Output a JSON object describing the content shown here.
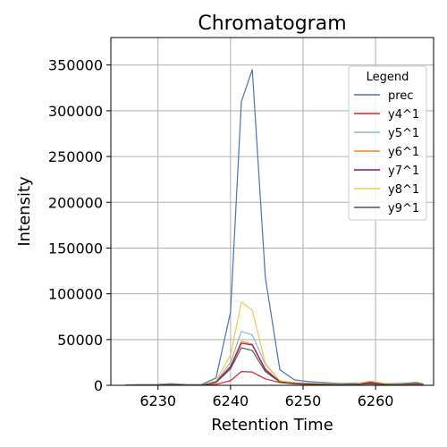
{
  "chart_data": {
    "type": "line",
    "title": "Chromatogram",
    "xlabel": "Retention Time",
    "ylabel": "Intensity",
    "xlim": [
      6223.5,
      6268
    ],
    "ylim": [
      0,
      380000
    ],
    "grid": true,
    "legend": {
      "title": "Legend",
      "placement": "top-right"
    },
    "xticks": [
      6230,
      6240,
      6250,
      6260
    ],
    "yticks": [
      0,
      50000,
      100000,
      150000,
      200000,
      250000,
      300000,
      350000
    ],
    "x": [
      6225.5,
      6227.6,
      6229.7,
      6231.8,
      6233.9,
      6236.0,
      6238.0,
      6240.0,
      6241.5,
      6243.0,
      6244.8,
      6246.8,
      6248.8,
      6250.9,
      6253.0,
      6255.1,
      6257.2,
      6259.3,
      6261.4,
      6263.5,
      6265.6,
      6266.6
    ],
    "series": [
      {
        "name": "prec",
        "color": "#4c72b0",
        "values": [
          500,
          800,
          700,
          1800,
          800,
          900,
          8000,
          80000,
          310000,
          345000,
          118000,
          17000,
          6000,
          4000,
          3000,
          2000,
          2500,
          2500,
          2000,
          2000,
          3000,
          1500
        ]
      },
      {
        "name": "y4^1",
        "color": "#d62728",
        "values": [
          100,
          100,
          100,
          200,
          100,
          100,
          1000,
          5000,
          15000,
          14500,
          7000,
          3000,
          1500,
          1000,
          800,
          600,
          800,
          2500,
          1500,
          1000,
          1500,
          500
        ]
      },
      {
        "name": "y5^1",
        "color": "#8ab6d9",
        "values": [
          200,
          300,
          200,
          600,
          300,
          300,
          4000,
          25000,
          59000,
          55000,
          23000,
          5000,
          3000,
          2000,
          1500,
          1200,
          1500,
          1500,
          1200,
          1000,
          1500,
          800
        ]
      },
      {
        "name": "y6^1",
        "color": "#f58231",
        "values": [
          200,
          300,
          200,
          500,
          300,
          300,
          3500,
          21000,
          48000,
          45000,
          18000,
          4000,
          2500,
          1800,
          1200,
          1000,
          1200,
          1500,
          1000,
          900,
          1200,
          600
        ]
      },
      {
        "name": "y7^1",
        "color": "#8b1a5c",
        "values": [
          200,
          300,
          200,
          500,
          300,
          300,
          3500,
          20000,
          46000,
          44000,
          17000,
          4000,
          2500,
          1800,
          1200,
          1000,
          1200,
          3500,
          1500,
          900,
          3000,
          1200
        ]
      },
      {
        "name": "y8^1",
        "color": "#f2c94c",
        "values": [
          300,
          400,
          300,
          800,
          400,
          400,
          5000,
          33000,
          91000,
          82000,
          24000,
          5000,
          3000,
          2500,
          1800,
          1400,
          1800,
          4500,
          2000,
          1200,
          2000,
          1000
        ]
      },
      {
        "name": "y9^1",
        "color": "#555555",
        "values": [
          200,
          300,
          200,
          500,
          300,
          300,
          3000,
          18000,
          41000,
          38000,
          15000,
          3500,
          2200,
          1600,
          1100,
          900,
          1100,
          1500,
          1000,
          800,
          1500,
          600
        ]
      }
    ]
  }
}
